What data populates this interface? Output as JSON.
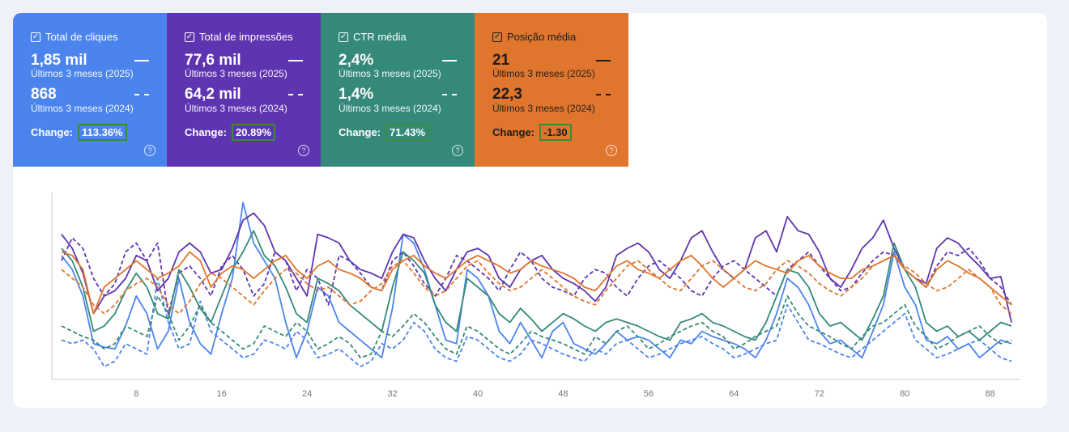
{
  "cards": [
    {
      "id": "clicks",
      "title": "Total de cliques",
      "value_current": "1,85 mil",
      "label_current": "Últimos 3 meses (2025)",
      "value_previous": "868",
      "label_previous": "Últimos 3 meses (2024)",
      "change_label": "Change:",
      "change_value": "113.36%",
      "color": "#4c84ee"
    },
    {
      "id": "impressions",
      "title": "Total de impressões",
      "value_current": "77,6 mil",
      "label_current": "Últimos 3 meses (2025)",
      "value_previous": "64,2 mil",
      "label_previous": "Últimos 3 meses (2024)",
      "change_label": "Change:",
      "change_value": "20.89%",
      "color": "#5e35b1"
    },
    {
      "id": "ctr",
      "title": "CTR média",
      "value_current": "2,4%",
      "label_current": "Últimos 3 meses (2025)",
      "value_previous": "1,4%",
      "label_previous": "Últimos 3 meses (2024)",
      "change_label": "Change:",
      "change_value": "71.43%",
      "color": "#34897b"
    },
    {
      "id": "position",
      "title": "Posição média",
      "value_current": "21",
      "label_current": "Últimos 3 meses (2025)",
      "value_previous": "22,3",
      "label_previous": "Últimos 3 meses (2024)",
      "change_label": "Change:",
      "change_value": "-1.30",
      "color": "#e0752d"
    }
  ],
  "icons": {
    "checkbox": "checkbox-checked-icon",
    "help": "help-circle-icon"
  },
  "chart_data": {
    "type": "line",
    "x_ticks": [
      8,
      16,
      24,
      32,
      40,
      48,
      56,
      64,
      72,
      80,
      88
    ],
    "xlim": [
      1,
      90
    ],
    "ylim": [
      0,
      100
    ],
    "series": [
      {
        "name": "Total de cliques 2025",
        "color": "#4c84ee",
        "dash": false,
        "values": [
          68,
          60,
          45,
          18,
          16,
          15,
          28,
          45,
          35,
          15,
          25,
          55,
          30,
          18,
          12,
          35,
          55,
          98,
          75,
          65,
          55,
          30,
          10,
          25,
          50,
          45,
          30,
          25,
          20,
          15,
          10,
          38,
          80,
          75,
          60,
          40,
          20,
          18,
          60,
          55,
          45,
          25,
          18,
          30,
          20,
          10,
          25,
          30,
          18,
          15,
          12,
          18,
          25,
          20,
          22,
          20,
          15,
          10,
          20,
          18,
          25,
          22,
          20,
          18,
          15,
          10,
          20,
          35,
          55,
          50,
          40,
          25,
          18,
          20,
          15,
          10,
          25,
          40,
          70,
          50,
          40,
          20,
          18,
          22,
          15,
          18,
          10,
          15,
          20,
          18
        ]
      },
      {
        "name": "Total de cliques 2024",
        "color": "#4c84ee",
        "dash": true,
        "values": [
          20,
          18,
          20,
          15,
          5,
          8,
          18,
          15,
          12,
          55,
          30,
          15,
          18,
          42,
          25,
          20,
          15,
          10,
          12,
          20,
          18,
          15,
          25,
          20,
          10,
          12,
          15,
          10,
          5,
          8,
          18,
          15,
          20,
          30,
          25,
          15,
          10,
          8,
          22,
          20,
          15,
          10,
          8,
          12,
          20,
          18,
          15,
          12,
          10,
          8,
          15,
          12,
          18,
          20,
          15,
          10,
          12,
          15,
          18,
          20,
          22,
          18,
          15,
          10,
          12,
          15,
          18,
          20,
          40,
          30,
          20,
          18,
          15,
          12,
          10,
          15,
          20,
          25,
          30,
          35,
          20,
          15,
          10,
          12,
          15,
          18,
          20,
          15,
          10,
          8
        ]
      },
      {
        "name": "Total de impressões 2025",
        "color": "#5e35b1",
        "dash": false,
        "values": [
          80,
          72,
          58,
          35,
          45,
          48,
          55,
          68,
          65,
          48,
          55,
          70,
          75,
          70,
          58,
          60,
          72,
          88,
          92,
          85,
          70,
          65,
          55,
          45,
          80,
          78,
          75,
          65,
          60,
          58,
          55,
          70,
          80,
          78,
          65,
          55,
          48,
          60,
          70,
          72,
          68,
          55,
          50,
          60,
          65,
          68,
          60,
          55,
          52,
          48,
          42,
          50,
          68,
          72,
          75,
          70,
          60,
          55,
          65,
          78,
          82,
          70,
          60,
          55,
          60,
          78,
          82,
          70,
          90,
          82,
          80,
          70,
          55,
          50,
          60,
          72,
          78,
          88,
          72,
          60,
          55,
          52,
          72,
          78,
          75,
          68,
          62,
          55,
          56,
          30
        ]
      },
      {
        "name": "Total de impressões 2024",
        "color": "#5e35b1",
        "dash": true,
        "values": [
          65,
          78,
          72,
          55,
          45,
          52,
          70,
          75,
          65,
          75,
          35,
          58,
          62,
          55,
          45,
          62,
          68,
          60,
          45,
          52,
          70,
          65,
          48,
          60,
          55,
          40,
          68,
          65,
          58,
          50,
          48,
          65,
          70,
          62,
          52,
          45,
          55,
          68,
          65,
          60,
          55,
          48,
          60,
          70,
          65,
          55,
          50,
          48,
          45,
          55,
          60,
          58,
          50,
          45,
          55,
          62,
          65,
          60,
          55,
          48,
          45,
          55,
          62,
          65,
          60,
          55,
          50,
          45,
          60,
          65,
          70,
          62,
          55,
          48,
          50,
          58,
          65,
          70,
          68,
          60,
          55,
          50,
          62,
          70,
          68,
          72,
          65,
          55,
          50,
          40
        ]
      },
      {
        "name": "CTR média 2025",
        "color": "#34897b",
        "dash": false,
        "values": [
          72,
          65,
          50,
          25,
          28,
          35,
          48,
          58,
          50,
          35,
          32,
          60,
          50,
          38,
          30,
          45,
          60,
          70,
          82,
          68,
          62,
          50,
          35,
          30,
          55,
          52,
          48,
          40,
          35,
          30,
          25,
          50,
          70,
          65,
          58,
          40,
          30,
          25,
          55,
          50,
          45,
          35,
          30,
          38,
          32,
          25,
          30,
          35,
          32,
          28,
          25,
          30,
          32,
          30,
          28,
          25,
          22,
          20,
          30,
          32,
          35,
          30,
          28,
          25,
          22,
          20,
          30,
          45,
          60,
          58,
          50,
          35,
          28,
          30,
          25,
          20,
          32,
          45,
          75,
          60,
          50,
          30,
          25,
          28,
          22,
          25,
          20,
          25,
          30,
          28
        ]
      },
      {
        "name": "CTR média 2024",
        "color": "#34897b",
        "dash": true,
        "values": [
          28,
          25,
          22,
          20,
          15,
          18,
          28,
          25,
          22,
          45,
          35,
          20,
          28,
          40,
          30,
          25,
          20,
          15,
          18,
          28,
          25,
          22,
          30,
          25,
          15,
          18,
          22,
          18,
          10,
          12,
          25,
          22,
          28,
          35,
          30,
          22,
          15,
          12,
          28,
          25,
          20,
          15,
          12,
          18,
          25,
          22,
          20,
          18,
          15,
          12,
          22,
          18,
          25,
          28,
          22,
          15,
          18,
          22,
          25,
          28,
          30,
          25,
          22,
          15,
          18,
          22,
          25,
          28,
          45,
          35,
          28,
          25,
          22,
          18,
          15,
          22,
          28,
          30,
          35,
          40,
          28,
          22,
          15,
          18,
          22,
          25,
          28,
          22,
          18,
          20
        ]
      },
      {
        "name": "Posição média 2025",
        "color": "#e0752d",
        "dash": false,
        "values": [
          70,
          68,
          60,
          35,
          50,
          55,
          60,
          65,
          60,
          55,
          58,
          62,
          70,
          65,
          50,
          58,
          62,
          60,
          55,
          60,
          65,
          68,
          60,
          55,
          62,
          65,
          60,
          58,
          55,
          50,
          48,
          60,
          65,
          68,
          62,
          58,
          55,
          60,
          65,
          68,
          65,
          62,
          58,
          60,
          65,
          62,
          60,
          58,
          55,
          50,
          48,
          55,
          62,
          65,
          60,
          58,
          55,
          60,
          65,
          68,
          62,
          55,
          50,
          55,
          60,
          65,
          62,
          60,
          58,
          65,
          68,
          62,
          58,
          55,
          55,
          60,
          62,
          65,
          68,
          60,
          55,
          50,
          60,
          65,
          62,
          58,
          55,
          50,
          45,
          40
        ]
      },
      {
        "name": "Posição média 2024",
        "color": "#e0752d",
        "dash": true,
        "values": [
          60,
          55,
          50,
          40,
          35,
          40,
          48,
          52,
          55,
          50,
          40,
          35,
          42,
          52,
          58,
          55,
          50,
          45,
          40,
          48,
          55,
          60,
          58,
          52,
          48,
          50,
          45,
          40,
          42,
          48,
          52,
          62,
          65,
          58,
          50,
          45,
          48,
          55,
          62,
          65,
          58,
          52,
          48,
          50,
          55,
          60,
          55,
          50,
          45,
          42,
          40,
          48,
          55,
          62,
          65,
          60,
          55,
          50,
          48,
          55,
          62,
          65,
          60,
          55,
          50,
          48,
          52,
          60,
          65,
          62,
          58,
          52,
          48,
          45,
          50,
          55,
          62,
          65,
          68,
          62,
          58,
          52,
          48,
          50,
          55,
          60,
          55,
          50,
          40,
          35
        ]
      }
    ]
  }
}
